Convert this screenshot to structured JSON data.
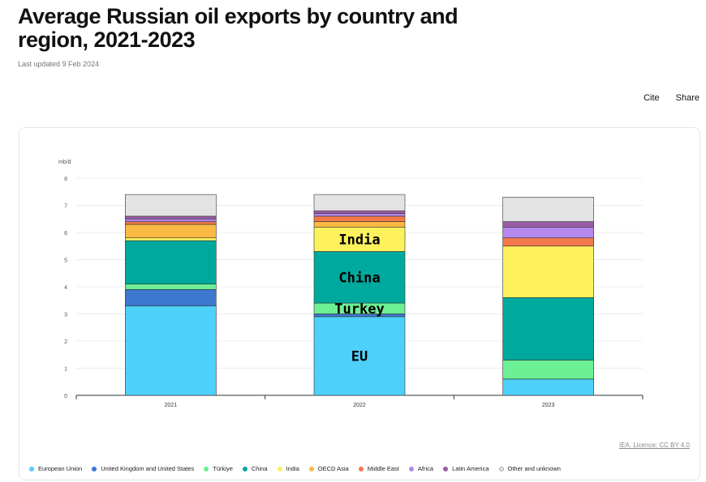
{
  "header": {
    "title": "Average Russian oil exports by country and region, 2021-2023",
    "updated": "Last updated 9 Feb 2024",
    "cite_label": "Cite",
    "share_label": "Share"
  },
  "source_label": "IEA. Licence: CC BY 4.0",
  "colors": {
    "European Union": "#4dd0fa",
    "United Kingdom and United States": "#3d78d0",
    "Türkiye": "#6def94",
    "China": "#00a99d",
    "India": "#fdf15c",
    "OECD Asia": "#f9b942",
    "Middle East": "#f3794a",
    "Africa": "#b488ec",
    "Latin America": "#9b5ca6",
    "Other and unknown": "#e3e3e3"
  },
  "chart_data": {
    "type": "bar",
    "stacked": true,
    "categories": [
      "2021",
      "2022",
      "2023"
    ],
    "ylabel": "mb/d",
    "ylim": [
      0,
      8
    ],
    "yticks": [
      0,
      1,
      2,
      3,
      4,
      5,
      6,
      7,
      8
    ],
    "grid": true,
    "legend_position": "bottom",
    "series": [
      {
        "name": "European Union",
        "values": [
          3.3,
          2.9,
          0.6
        ]
      },
      {
        "name": "United Kingdom and United States",
        "values": [
          0.6,
          0.1,
          0.0
        ]
      },
      {
        "name": "Türkiye",
        "values": [
          0.2,
          0.4,
          0.7
        ]
      },
      {
        "name": "China",
        "values": [
          1.6,
          1.9,
          2.3
        ]
      },
      {
        "name": "India",
        "values": [
          0.1,
          0.9,
          1.9
        ]
      },
      {
        "name": "OECD Asia",
        "values": [
          0.5,
          0.2,
          0.0
        ]
      },
      {
        "name": "Middle East",
        "values": [
          0.1,
          0.2,
          0.3
        ]
      },
      {
        "name": "Africa",
        "values": [
          0.1,
          0.1,
          0.4
        ]
      },
      {
        "name": "Latin America",
        "values": [
          0.1,
          0.1,
          0.2
        ]
      },
      {
        "name": "Other and unknown",
        "values": [
          0.8,
          0.6,
          0.9
        ]
      }
    ],
    "annotations": [
      {
        "text": "India",
        "category": "2022",
        "series": "India"
      },
      {
        "text": "China",
        "category": "2022",
        "series": "China"
      },
      {
        "text": "Turkey",
        "category": "2022",
        "series": "Türkiye"
      },
      {
        "text": "EU",
        "category": "2022",
        "series": "European Union"
      }
    ]
  }
}
